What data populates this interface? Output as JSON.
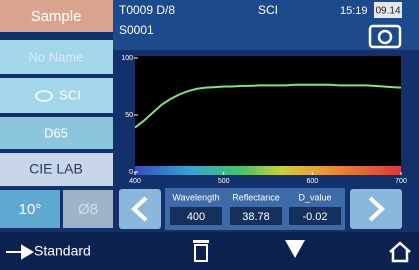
{
  "header": {
    "mode_button": "Sample",
    "test_id": "T0009 D/8",
    "sample_id": "S0001",
    "mode": "SCI",
    "time": "15:19",
    "date": "09.14"
  },
  "sidebar": {
    "name": "No Name",
    "spec": "SCI",
    "illuminant": "D65",
    "color_space": "CIE LAB",
    "observer": "10°",
    "aperture": "Ø8"
  },
  "chart_data": {
    "type": "line",
    "x": [
      400,
      410,
      420,
      430,
      440,
      450,
      460,
      470,
      480,
      490,
      500,
      510,
      520,
      530,
      540,
      550,
      560,
      570,
      580,
      590,
      600,
      610,
      620,
      630,
      640,
      650,
      660,
      670,
      680,
      690,
      700
    ],
    "series": [
      {
        "color": "#7ee37e",
        "values": [
          39,
          45,
          52,
          59,
          64,
          68,
          71,
          73,
          74,
          74.5,
          75,
          75,
          75.5,
          75.5,
          76,
          76,
          76,
          76,
          76.5,
          76.5,
          76.5,
          76.5,
          76.5,
          76,
          76,
          76,
          76,
          75.5,
          75,
          74.5,
          74
        ]
      }
    ],
    "xlim": [
      400,
      700
    ],
    "ylim": [
      0,
      100
    ],
    "xticks": [
      400,
      500,
      600,
      700
    ],
    "yticks": [
      0,
      50,
      100
    ]
  },
  "readout": {
    "wavelength_label": "Wavelength",
    "wavelength": 400,
    "reflectance_label": "Reflectance",
    "reflectance": 38.78,
    "dvalue_label": "D_value",
    "dvalue": -0.02
  },
  "footer": {
    "standard": "Standard"
  }
}
